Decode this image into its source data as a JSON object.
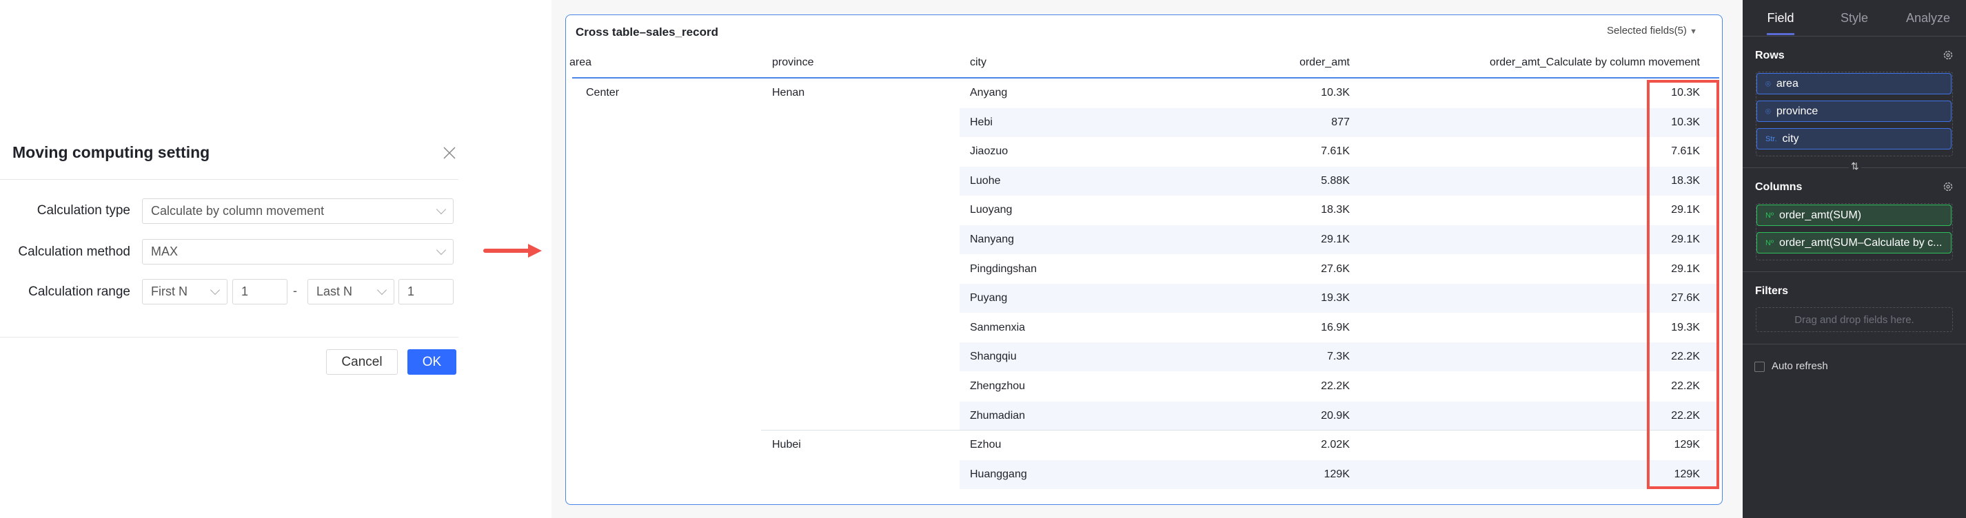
{
  "dialog": {
    "title": "Moving computing setting",
    "fields": [
      {
        "label": "Calculation type",
        "value": "Calculate by column movement"
      },
      {
        "label": "Calculation method",
        "value": "MAX"
      },
      {
        "label": "Calculation range",
        "start_mode": "First N",
        "start_value": "1",
        "separator": "-",
        "end_mode": "Last N",
        "end_value": "1"
      }
    ],
    "cancel_label": "Cancel",
    "ok_label": "OK"
  },
  "colors": {
    "accent": "#2f6bff",
    "highlight": "#f0524a",
    "panel_bg": "#2b2d33"
  },
  "table": {
    "title": "Cross table–sales_record",
    "selected_fields": "Selected fields(5)",
    "headers": [
      "area",
      "province",
      "city",
      "order_amt",
      "order_amt_Calculate by column movement"
    ],
    "area": "Center",
    "provinces": [
      "Henan",
      "Hubei"
    ],
    "rows": [
      {
        "city": "Anyang",
        "order_amt": "10.3K",
        "moving": "10.3K"
      },
      {
        "city": "Hebi",
        "order_amt": "877",
        "moving": "10.3K"
      },
      {
        "city": "Jiaozuo",
        "order_amt": "7.61K",
        "moving": "7.61K"
      },
      {
        "city": "Luohe",
        "order_amt": "5.88K",
        "moving": "18.3K"
      },
      {
        "city": "Luoyang",
        "order_amt": "18.3K",
        "moving": "29.1K"
      },
      {
        "city": "Nanyang",
        "order_amt": "29.1K",
        "moving": "29.1K"
      },
      {
        "city": "Pingdingshan",
        "order_amt": "27.6K",
        "moving": "29.1K"
      },
      {
        "city": "Puyang",
        "order_amt": "19.3K",
        "moving": "27.6K"
      },
      {
        "city": "Sanmenxia",
        "order_amt": "16.9K",
        "moving": "19.3K"
      },
      {
        "city": "Shangqiu",
        "order_amt": "7.3K",
        "moving": "22.2K"
      },
      {
        "city": "Zhengzhou",
        "order_amt": "22.2K",
        "moving": "22.2K"
      },
      {
        "city": "Zhumadian",
        "order_amt": "20.9K",
        "moving": "22.2K"
      },
      {
        "city": "Ezhou",
        "order_amt": "2.02K",
        "moving": "129K"
      },
      {
        "city": "Huanggang",
        "order_amt": "129K",
        "moving": "129K"
      }
    ]
  },
  "panel": {
    "tabs": [
      "Field",
      "Style",
      "Analyze"
    ],
    "active_tab": "Field",
    "rows_label": "Rows",
    "rows": [
      {
        "icon": "location-icon",
        "label": "area"
      },
      {
        "icon": "string-icon",
        "badge": "",
        "label": "province"
      },
      {
        "icon": "string-icon",
        "badge": "Str.",
        "label": "city"
      }
    ],
    "columns_label": "Columns",
    "columns": [
      {
        "badge": "Nº",
        "label": "order_amt(SUM)"
      },
      {
        "badge": "Nº",
        "label": "order_amt(SUM–Calculate by c..."
      }
    ],
    "filters_label": "Filters",
    "filters_placeholder": "Drag and drop fields here.",
    "auto_refresh_label": "Auto refresh",
    "auto_refresh": false
  }
}
